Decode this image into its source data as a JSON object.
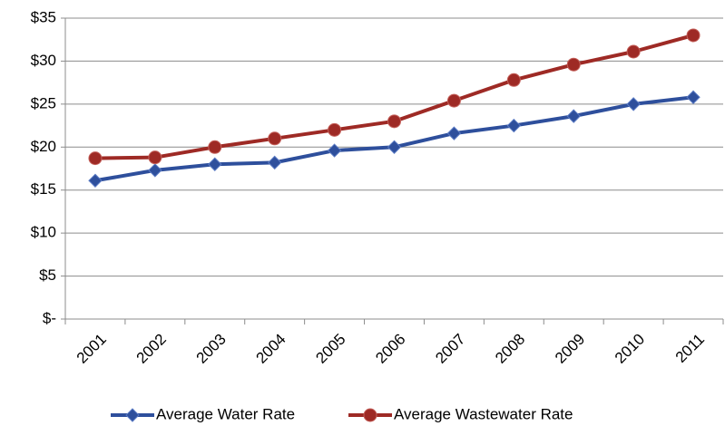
{
  "chart_data": {
    "type": "line",
    "categories": [
      "2001",
      "2002",
      "2003",
      "2004",
      "2005",
      "2006",
      "2007",
      "2008",
      "2009",
      "2010",
      "2011"
    ],
    "series": [
      {
        "name": "Average Water Rate",
        "color": "#2e4f9c",
        "marker": "diamond",
        "values": [
          16.1,
          17.3,
          18.0,
          18.2,
          19.6,
          20.0,
          21.6,
          22.5,
          23.6,
          25.0,
          25.8
        ]
      },
      {
        "name": "Average Wastewater Rate",
        "color": "#9e2a25",
        "marker": "circle",
        "values": [
          18.7,
          18.8,
          20.0,
          21.0,
          22.0,
          23.0,
          25.4,
          27.8,
          29.6,
          31.1,
          33.0
        ]
      }
    ],
    "ylim": [
      0,
      35
    ],
    "yticks": [
      {
        "value": 0,
        "label": "$-"
      },
      {
        "value": 5,
        "label": "$5"
      },
      {
        "value": 10,
        "label": "$10"
      },
      {
        "value": 15,
        "label": "$15"
      },
      {
        "value": 20,
        "label": "$20"
      },
      {
        "value": 25,
        "label": "$25"
      },
      {
        "value": 30,
        "label": "$30"
      },
      {
        "value": 35,
        "label": "$35"
      }
    ],
    "grid": true,
    "legend": "bottom"
  }
}
